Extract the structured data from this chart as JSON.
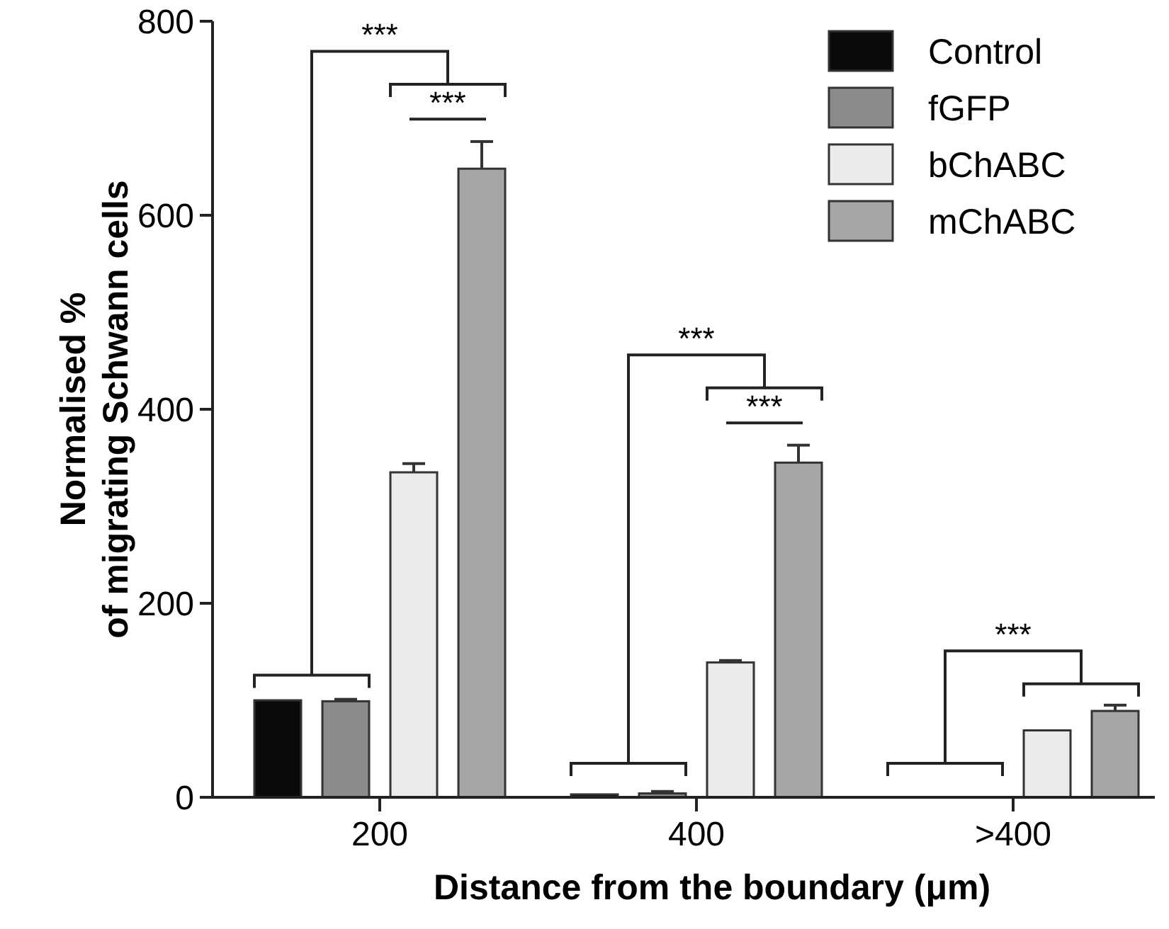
{
  "chart_data": {
    "type": "bar",
    "xlabel": "Distance from the boundary (μm)",
    "ylabel": "Normalised %\nof migrating Schwann cells",
    "categories": [
      "200",
      "400",
      ">400"
    ],
    "series": [
      {
        "name": "Control",
        "color": "#0a0a0a",
        "values": [
          100,
          3,
          0
        ]
      },
      {
        "name": "fGFP",
        "color": "#8c8c8c",
        "values": [
          99,
          4,
          0
        ],
        "errors": [
          2,
          2,
          null
        ]
      },
      {
        "name": "bChABC",
        "color": "#ebebeb",
        "values": [
          335,
          139,
          69
        ],
        "errors": [
          9,
          2,
          null
        ]
      },
      {
        "name": "mChABC",
        "color": "#a6a6a6",
        "values": [
          648,
          345,
          89
        ],
        "errors": [
          28,
          18,
          6
        ]
      }
    ],
    "ylim": [
      0,
      800
    ],
    "yticks": [
      0,
      200,
      400,
      600,
      800
    ],
    "legend": "top right",
    "annotations": [
      "***",
      "***",
      "***",
      "***",
      "***"
    ]
  }
}
